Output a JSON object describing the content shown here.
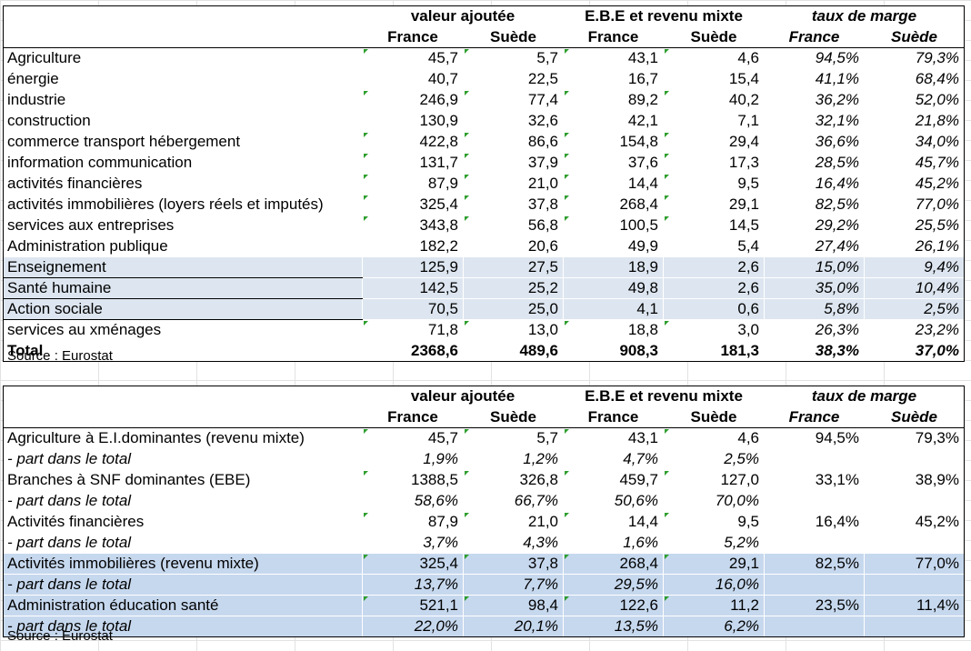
{
  "source_label": "Source : Eurostat",
  "table1": {
    "groups": [
      "valeur ajoutée",
      "E.B.E et revenu mixte",
      "taux de marge"
    ],
    "countries": [
      "France",
      "Suède",
      "France",
      "Suède",
      "France",
      "Suède"
    ],
    "rows": [
      {
        "label": "Agriculture",
        "values": [
          "45,7",
          "5,7",
          "43,1",
          "4,6",
          "94,5%",
          "79,3%"
        ]
      },
      {
        "label": "énergie",
        "values": [
          "40,7",
          "22,5",
          "16,7",
          "15,4",
          "41,1%",
          "68,4%"
        ]
      },
      {
        "label": "industrie",
        "values": [
          "246,9",
          "77,4",
          "89,2",
          "40,2",
          "36,2%",
          "52,0%"
        ]
      },
      {
        "label": "construction",
        "values": [
          "130,9",
          "32,6",
          "42,1",
          "7,1",
          "32,1%",
          "21,8%"
        ]
      },
      {
        "label": "commerce transport hébergement",
        "values": [
          "422,8",
          "86,6",
          "154,8",
          "29,4",
          "36,6%",
          "34,0%"
        ]
      },
      {
        "label": "information communication",
        "values": [
          "131,7",
          "37,9",
          "37,6",
          "17,3",
          "28,5%",
          "45,7%"
        ]
      },
      {
        "label": "activités financières",
        "values": [
          "87,9",
          "21,0",
          "14,4",
          "9,5",
          "16,4%",
          "45,2%"
        ]
      },
      {
        "label": "activités immobilières (loyers réels et imputés)",
        "values": [
          "325,4",
          "37,8",
          "268,4",
          "29,1",
          "82,5%",
          "77,0%"
        ]
      },
      {
        "label": "services aux entreprises",
        "values": [
          "343,8",
          "56,8",
          "100,5",
          "14,5",
          "29,2%",
          "25,5%"
        ]
      },
      {
        "label": "Administration publique",
        "values": [
          "182,2",
          "20,6",
          "49,9",
          "5,4",
          "27,4%",
          "26,1%"
        ]
      },
      {
        "label": "Enseignement",
        "values": [
          "125,9",
          "27,5",
          "18,9",
          "2,6",
          "15,0%",
          "9,4%"
        ]
      },
      {
        "label": "Santé humaine",
        "values": [
          "142,5",
          "25,2",
          "49,8",
          "2,6",
          "35,0%",
          "10,4%"
        ]
      },
      {
        "label": "Action sociale",
        "values": [
          "70,5",
          "25,0",
          "4,1",
          "0,6",
          "5,8%",
          "2,5%"
        ]
      },
      {
        "label": "services au xménages",
        "values": [
          "71,8",
          "13,0",
          "18,8",
          "3,0",
          "26,3%",
          "23,2%"
        ]
      },
      {
        "label": "Total",
        "values": [
          "2368,6",
          "489,6",
          "908,3",
          "181,3",
          "38,3%",
          "37,0%"
        ]
      }
    ]
  },
  "table2": {
    "groups": [
      "valeur ajoutée",
      "E.B.E et revenu mixte",
      "taux de marge"
    ],
    "countries": [
      "France",
      "Suède",
      "France",
      "Suède",
      "France",
      "Suède"
    ],
    "share_label": " - part dans le total",
    "rows": [
      {
        "label": "Agriculture à  E.I.dominantes (revenu mixte)",
        "values": [
          "45,7",
          "5,7",
          "43,1",
          "4,6",
          "94,5%",
          "79,3%"
        ],
        "shares": [
          "1,9%",
          "1,2%",
          "4,7%",
          "2,5%"
        ]
      },
      {
        "label": "Branches à SNF dominantes (EBE)",
        "values": [
          "1388,5",
          "326,8",
          "459,7",
          "127,0",
          "33,1%",
          "38,9%"
        ],
        "shares": [
          "58,6%",
          "66,7%",
          "50,6%",
          "70,0%"
        ]
      },
      {
        "label": "Activités financières",
        "values": [
          "87,9",
          "21,0",
          "14,4",
          "9,5",
          "16,4%",
          "45,2%"
        ],
        "shares": [
          "3,7%",
          "4,3%",
          "1,6%",
          "5,2%"
        ]
      },
      {
        "label": "Activités immobilières (revenu mixte)",
        "values": [
          "325,4",
          "37,8",
          "268,4",
          "29,1",
          "82,5%",
          "77,0%"
        ],
        "shares": [
          "13,7%",
          "7,7%",
          "29,5%",
          "16,0%"
        ]
      },
      {
        "label": "Administration éducation santé",
        "values": [
          "521,1",
          "98,4",
          "122,6",
          "11,2",
          "23,5%",
          "11,4%"
        ],
        "shares": [
          "22,0%",
          "20,1%",
          "13,5%",
          "6,2%"
        ]
      }
    ]
  }
}
